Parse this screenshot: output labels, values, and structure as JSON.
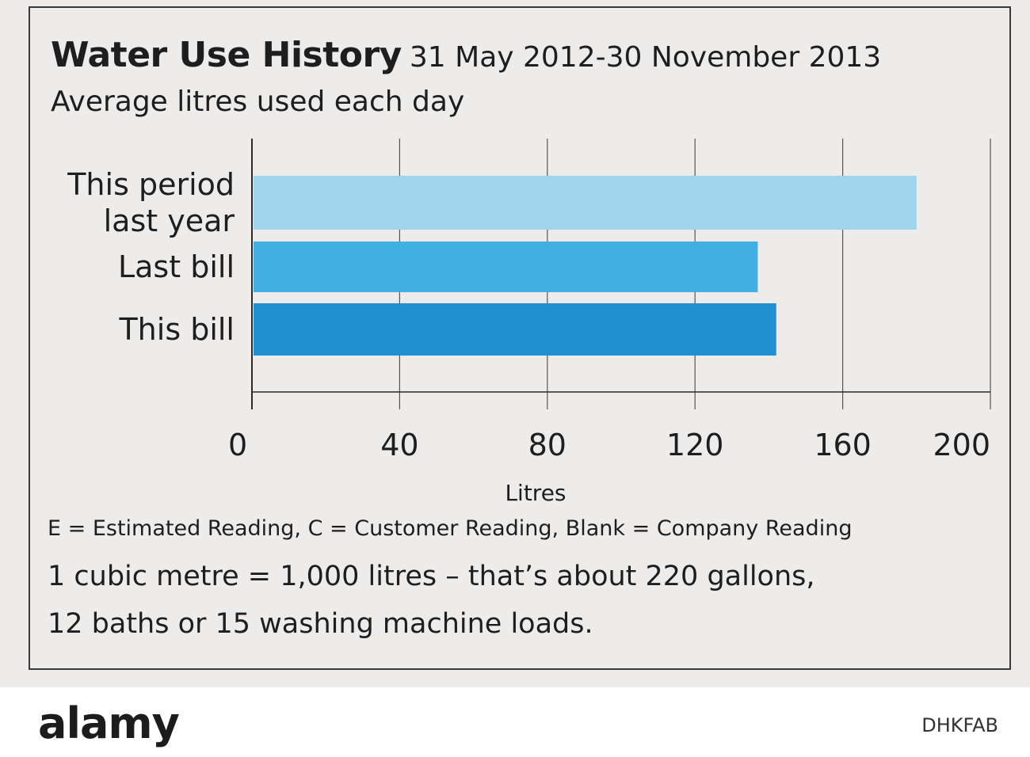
{
  "header": {
    "title": "Water Use History",
    "date_range": "31 May 2012-30 November 2013",
    "subtitle": "Average litres used each day"
  },
  "chart_data": {
    "type": "bar",
    "orientation": "horizontal",
    "categories": [
      [
        "This period",
        "last year"
      ],
      [
        "Last bill"
      ],
      [
        "This bill"
      ]
    ],
    "values": [
      180,
      137,
      142
    ],
    "colors": [
      "#9fd4ec",
      "#3fb0e1",
      "#2291d1"
    ],
    "xlabel": "Litres",
    "xlim": [
      0,
      200
    ],
    "xticks": [
      "0",
      "40",
      "80",
      "120",
      "160",
      "200"
    ],
    "grid": true
  },
  "notes": {
    "legend": "E = Estimated Reading, C = Customer Reading, Blank = Company Reading",
    "line1": "1 cubic metre = 1,000 litres – that’s about 220 gallons,",
    "line2": "12 baths or 15 washing machine loads."
  },
  "footer": {
    "logo": "alamy",
    "code": "DHKFAB"
  }
}
